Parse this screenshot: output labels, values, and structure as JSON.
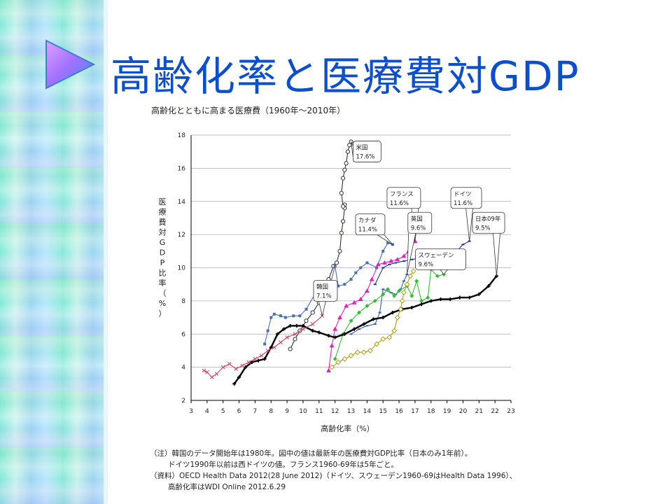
{
  "page": {
    "title": "高齢化率と医療費対GDP"
  },
  "chart_data": {
    "type": "line",
    "title": "高齢化とともに高まる医療費（1960年～2010年）",
    "xlabel": "高齢化率（%）",
    "ylabel": "医療費対GDP比率（%）",
    "xlim": [
      3,
      23
    ],
    "ylim": [
      2,
      18
    ],
    "xticks": [
      3,
      4,
      5,
      6,
      7,
      8,
      9,
      10,
      11,
      12,
      13,
      14,
      15,
      16,
      17,
      18,
      19,
      20,
      21,
      22,
      23
    ],
    "yticks": [
      2,
      4,
      6,
      8,
      10,
      12,
      14,
      16,
      18
    ],
    "grid": "horizontal",
    "series": [
      {
        "name": "米国",
        "color": "#333333",
        "marker": "circle",
        "points": [
          [
            9.2,
            5.1
          ],
          [
            9.5,
            5.7
          ],
          [
            9.8,
            6.2
          ],
          [
            10.2,
            6.8
          ],
          [
            10.6,
            7.3
          ],
          [
            11.0,
            7.9
          ],
          [
            11.3,
            8.7
          ],
          [
            11.6,
            9.3
          ],
          [
            11.9,
            10.1
          ],
          [
            12.1,
            10.3
          ],
          [
            12.3,
            11.0
          ],
          [
            12.4,
            12.1
          ],
          [
            12.5,
            12.8
          ],
          [
            12.6,
            13.6
          ],
          [
            12.6,
            13.8
          ],
          [
            12.5,
            13.7
          ],
          [
            12.4,
            14.5
          ],
          [
            12.5,
            15.4
          ],
          [
            12.6,
            15.9
          ],
          [
            12.7,
            16.3
          ],
          [
            12.8,
            17.0
          ],
          [
            12.9,
            17.4
          ],
          [
            13.0,
            17.6
          ]
        ],
        "label": "米国",
        "latest": "17.6%"
      },
      {
        "name": "カナダ",
        "color": "#4a6fb5",
        "marker": "square",
        "points": [
          [
            7.6,
            5.4
          ],
          [
            7.8,
            6.2
          ],
          [
            8.0,
            7.0
          ],
          [
            8.2,
            7.2
          ],
          [
            8.6,
            7.1
          ],
          [
            8.9,
            7.0
          ],
          [
            9.4,
            7.1
          ],
          [
            9.8,
            7.1
          ],
          [
            10.2,
            7.5
          ],
          [
            10.8,
            8.5
          ],
          [
            11.3,
            8.9
          ],
          [
            11.7,
            9.0
          ],
          [
            12.0,
            10.1
          ],
          [
            12.2,
            8.9
          ],
          [
            12.6,
            9.0
          ],
          [
            13.0,
            9.3
          ],
          [
            13.3,
            9.7
          ],
          [
            13.6,
            10.0
          ],
          [
            14.0,
            10.3
          ],
          [
            14.6,
            10.0
          ],
          [
            15.0,
            11.0
          ],
          [
            15.3,
            11.5
          ],
          [
            15.6,
            11.4
          ]
        ],
        "label": "カナダ",
        "latest": "11.4%"
      },
      {
        "name": "フランス",
        "color": "#e020c0",
        "marker": "triangle",
        "points": [
          [
            11.6,
            3.8
          ],
          [
            11.8,
            5.3
          ],
          [
            12.0,
            6.3
          ],
          [
            12.3,
            7.0
          ],
          [
            12.7,
            7.7
          ],
          [
            13.2,
            7.9
          ],
          [
            13.6,
            8.1
          ],
          [
            14.0,
            8.6
          ],
          [
            14.3,
            9.3
          ],
          [
            14.7,
            10.2
          ],
          [
            15.1,
            10.3
          ],
          [
            15.5,
            10.4
          ],
          [
            15.9,
            10.5
          ],
          [
            16.3,
            10.7
          ],
          [
            16.6,
            11.0
          ],
          [
            17.0,
            11.6
          ]
        ],
        "label": "フランス",
        "latest": "11.6%"
      },
      {
        "name": "ドイツ",
        "color": "#1a30b0",
        "marker": "dash",
        "points": [
          [
            14.5,
            9.0
          ],
          [
            15.0,
            10.0
          ],
          [
            15.4,
            10.2
          ],
          [
            15.8,
            10.3
          ],
          [
            16.3,
            10.4
          ],
          [
            16.8,
            10.5
          ],
          [
            17.4,
            10.6
          ],
          [
            18.0,
            10.7
          ],
          [
            18.5,
            10.6
          ],
          [
            19.0,
            10.8
          ],
          [
            19.6,
            11.0
          ],
          [
            20.0,
            11.4
          ],
          [
            20.4,
            11.6
          ]
        ],
        "label": "ドイツ",
        "latest": "11.6%"
      },
      {
        "name": "英国",
        "color": "#3060c8",
        "marker": "dash",
        "points": [
          [
            13.0,
            6.0
          ],
          [
            13.5,
            6.3
          ],
          [
            14.0,
            6.5
          ],
          [
            14.5,
            6.6
          ],
          [
            14.8,
            7.3
          ],
          [
            15.0,
            8.7
          ],
          [
            15.5,
            8.5
          ],
          [
            15.8,
            8.4
          ],
          [
            16.1,
            8.7
          ],
          [
            16.3,
            9.2
          ],
          [
            16.5,
            9.6
          ]
        ],
        "label": "英国",
        "latest": "9.6%"
      },
      {
        "name": "スウェーデン",
        "color": "#30c030",
        "marker": "diamond",
        "points": [
          [
            12.0,
            4.5
          ],
          [
            12.5,
            6.0
          ],
          [
            13.0,
            6.8
          ],
          [
            13.5,
            7.3
          ],
          [
            14.0,
            7.7
          ],
          [
            14.5,
            8.0
          ],
          [
            15.0,
            8.4
          ],
          [
            15.3,
            8.7
          ],
          [
            15.7,
            8.3
          ],
          [
            16.0,
            8.6
          ],
          [
            16.5,
            8.9
          ],
          [
            16.8,
            8.3
          ],
          [
            17.1,
            9.2
          ],
          [
            17.4,
            8.0
          ],
          [
            17.8,
            8.2
          ],
          [
            18.0,
            9.9
          ],
          [
            18.4,
            9.5
          ],
          [
            18.8,
            9.6
          ]
        ],
        "label": "スウェーデン",
        "latest": "9.6%"
      },
      {
        "name": "日本",
        "color": "#000000",
        "marker": "plus",
        "points": [
          [
            5.7,
            3.0
          ],
          [
            6.0,
            3.4
          ],
          [
            6.4,
            4.0
          ],
          [
            6.8,
            4.3
          ],
          [
            7.2,
            4.4
          ],
          [
            7.6,
            4.5
          ],
          [
            8.0,
            5.2
          ],
          [
            8.4,
            6.0
          ],
          [
            8.8,
            6.3
          ],
          [
            9.2,
            6.5
          ],
          [
            9.6,
            6.5
          ],
          [
            10.0,
            6.5
          ],
          [
            10.6,
            6.2
          ],
          [
            11.0,
            6.1
          ],
          [
            11.6,
            5.9
          ],
          [
            12.0,
            5.8
          ],
          [
            12.6,
            6.0
          ],
          [
            13.2,
            6.3
          ],
          [
            13.8,
            6.6
          ],
          [
            14.4,
            6.9
          ],
          [
            15.0,
            7.0
          ],
          [
            15.6,
            7.3
          ],
          [
            16.2,
            7.5
          ],
          [
            16.8,
            7.6
          ],
          [
            17.4,
            7.8
          ],
          [
            18.0,
            8.0
          ],
          [
            18.6,
            8.1
          ],
          [
            19.2,
            8.1
          ],
          [
            19.8,
            8.2
          ],
          [
            20.4,
            8.2
          ],
          [
            21.0,
            8.4
          ],
          [
            21.6,
            8.9
          ],
          [
            22.1,
            9.5
          ]
        ],
        "label": "日本09年",
        "latest": "9.5%"
      },
      {
        "name": "韓国",
        "color": "#d04060",
        "marker": "cross",
        "points": [
          [
            3.8,
            3.8
          ],
          [
            4.0,
            3.7
          ],
          [
            4.3,
            3.4
          ],
          [
            4.6,
            3.6
          ],
          [
            5.0,
            4.0
          ],
          [
            5.4,
            4.2
          ],
          [
            5.8,
            3.9
          ],
          [
            6.2,
            4.1
          ],
          [
            6.6,
            4.3
          ],
          [
            7.0,
            4.5
          ],
          [
            7.4,
            4.7
          ],
          [
            7.8,
            5.0
          ],
          [
            8.2,
            5.2
          ],
          [
            8.6,
            5.5
          ],
          [
            9.0,
            5.8
          ],
          [
            9.5,
            6.0
          ],
          [
            10.0,
            6.3
          ],
          [
            10.6,
            6.6
          ],
          [
            11.2,
            7.1
          ]
        ],
        "label": "韓国",
        "latest": "7.1%"
      },
      {
        "name": "",
        "color": "#b0a010",
        "marker": "diamond-open",
        "points": [
          [
            11.8,
            4.0
          ],
          [
            12.2,
            4.3
          ],
          [
            12.6,
            4.5
          ],
          [
            13.0,
            4.7
          ],
          [
            13.4,
            4.9
          ],
          [
            13.8,
            4.9
          ],
          [
            14.2,
            5.0
          ],
          [
            14.6,
            5.4
          ],
          [
            15.0,
            5.7
          ],
          [
            15.4,
            5.8
          ],
          [
            15.7,
            6.2
          ],
          [
            15.9,
            7.0
          ],
          [
            16.1,
            7.5
          ],
          [
            16.2,
            8.0
          ],
          [
            16.3,
            8.5
          ],
          [
            16.5,
            9.0
          ],
          [
            16.7,
            9.5
          ],
          [
            16.9,
            9.8
          ]
        ],
        "label": "",
        "latest": ""
      }
    ]
  },
  "notes": [
    "（注）韓国のデータ開始年は1980年。図中の値は最新年の医療費対GDP比率（日本のみ1年前）。",
    "ドイツ1990年以前は西ドイツの値。フランス1960-69年は5年ごと。",
    "（資料）OECD Health Data 2012(28 June 2012)（ドイツ、スウェーデン1960-69はHealth Data 1996）、",
    "高齢化率はWDI Online 2012.6.29"
  ]
}
